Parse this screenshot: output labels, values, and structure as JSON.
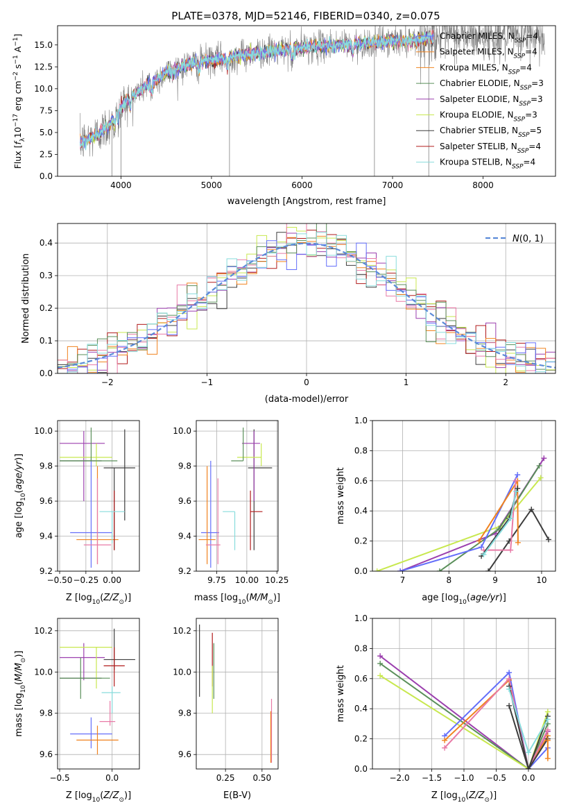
{
  "title": "PLATE=0378, MJD=52146, FIBERID=0340, z=0.075",
  "model_colors": [
    "#636efa",
    "#f0821e",
    "#e87aa6",
    "#3c3c3c",
    "#9b3fae",
    "#c8e84f",
    "#5a8f5a",
    "#b11a1a",
    "#87dcdc"
  ],
  "chart_data": [
    {
      "id": "spectrum",
      "type": "line",
      "xlabel": "wavelength [Angstrom, rest frame]",
      "ylabel": "Flux [f_λ 10^-17 erg cm^-2 s^-1 A^-1]",
      "xlim": [
        3300,
        8800
      ],
      "ylim": [
        0,
        17.2
      ],
      "xticks": [
        4000,
        5000,
        6000,
        7000,
        8000
      ],
      "yticks": [
        0.0,
        2.5,
        5.0,
        7.5,
        10.0,
        12.5,
        15.0
      ],
      "grid": false,
      "legend_position": "right",
      "data_color": "#7f7f7f",
      "data_envelope": {
        "x": [
          3550,
          3700,
          3850,
          3950,
          4050,
          4200,
          4350,
          4500,
          4700,
          4900,
          5100,
          5300,
          5500,
          5800,
          6100,
          6400,
          6700,
          7000,
          7300,
          7500
        ],
        "y": [
          3.8,
          4.6,
          5.6,
          7.2,
          8.6,
          9.8,
          10.8,
          11.8,
          12.6,
          13.2,
          13.4,
          13.8,
          14.1,
          14.4,
          14.8,
          15.0,
          15.2,
          15.4,
          15.6,
          16.0
        ]
      },
      "data_noise_amplitude": 1.6,
      "model_end_x": 7450,
      "legend": [
        "Chabrier MILES, N_SSP=4",
        "Salpeter MILES, N_SSP=4",
        "Kroupa MILES, N_SSP=4",
        "Chabrier ELODIE, N_SSP=3",
        "Salpeter ELODIE, N_SSP=3",
        "Kroupa ELODIE, N_SSP=3",
        "Chabrier STELIB, N_SSP=5",
        "Salpeter STELIB, N_SSP=4",
        "Kroupa STELIB, N_SSP=4"
      ],
      "legend_labels": [
        {
          "pre": "Chabrier MILES, N",
          "sub": "SSP",
          "post": "=4"
        },
        {
          "pre": "Salpeter MILES, N",
          "sub": "SSP",
          "post": "=4"
        },
        {
          "pre": "Kroupa MILES, N",
          "sub": "SSP",
          "post": "=4"
        },
        {
          "pre": "Chabrier ELODIE, N",
          "sub": "SSP",
          "post": "=3"
        },
        {
          "pre": "Salpeter ELODIE, N",
          "sub": "SSP",
          "post": "=3"
        },
        {
          "pre": "Kroupa ELODIE, N",
          "sub": "SSP",
          "post": "=3"
        },
        {
          "pre": "Chabrier STELIB, N",
          "sub": "SSP",
          "post": "=5"
        },
        {
          "pre": "Salpeter STELIB, N",
          "sub": "SSP",
          "post": "=4"
        },
        {
          "pre": "Kroupa STELIB, N",
          "sub": "SSP",
          "post": "=4"
        }
      ]
    },
    {
      "id": "residuals",
      "type": "histogram",
      "xlabel": "(data-model)/error",
      "ylabel": "Normed distribution",
      "xlim": [
        -2.5,
        2.5
      ],
      "ylim": [
        0,
        0.46
      ],
      "xticks": [
        -2,
        -1,
        0,
        1,
        2
      ],
      "yticks": [
        0.0,
        0.1,
        0.2,
        0.3,
        0.4
      ],
      "grid": true,
      "bin_width": 0.1,
      "bin_start": -2.5,
      "reference_curve": {
        "label": "N(0,1)",
        "color": "#5b8bd8",
        "style": "dashed"
      },
      "legend_position": "top-right"
    },
    {
      "id": "age_vs_Z",
      "type": "errorbar",
      "xlabel": "Z [log10(Z/Z⊙)]",
      "ylabel": "age [log10(age/yr)]",
      "xlim": [
        -0.52,
        0.26
      ],
      "ylim": [
        9.2,
        10.06
      ],
      "xticks": [
        -0.5,
        -0.25,
        0.0
      ],
      "yticks": [
        9.2,
        9.4,
        9.6,
        9.8,
        10.0
      ],
      "grid": true,
      "points": [
        {
          "x": -0.2,
          "y": 9.42,
          "xerr": [
            0.2,
            0.2
          ],
          "yerr": [
            0.2,
            0.42
          ],
          "color_index": 0
        },
        {
          "x": -0.14,
          "y": 9.38,
          "xerr": [
            0.2,
            0.2
          ],
          "yerr": [
            0.14,
            0.42
          ],
          "color_index": 1
        },
        {
          "x": -0.14,
          "y": 9.35,
          "xerr": [
            0.13,
            0.13
          ],
          "yerr": [
            0.11,
            0.38
          ],
          "color_index": 2
        },
        {
          "x": -0.1,
          "y": 9.83,
          "xerr": [
            0.4,
            0.0
          ],
          "yerr": [
            0.0,
            0.0
          ],
          "color_index": 3
        },
        {
          "x": 0.02,
          "y": 9.79,
          "xerr": [
            0.1,
            0.2
          ],
          "yerr": [
            0.47,
            0.0
          ],
          "color_index": 3
        },
        {
          "x": 0.12,
          "y": 9.79,
          "xerr": [
            0.0,
            0.0
          ],
          "yerr": [
            0.3,
            0.22
          ],
          "color_index": 3
        },
        {
          "x": -0.27,
          "y": 9.93,
          "xerr": [
            0.23,
            0.2
          ],
          "yerr": [
            0.33,
            0.07
          ],
          "color_index": 4
        },
        {
          "x": -0.15,
          "y": 9.85,
          "xerr": [
            0.35,
            0.15
          ],
          "yerr": [
            0.05,
            0.08
          ],
          "color_index": 5
        },
        {
          "x": -0.2,
          "y": 9.83,
          "xerr": [
            0.3,
            0.25
          ],
          "yerr": [
            0.0,
            0.19
          ],
          "color_index": 6
        },
        {
          "x": 0.02,
          "y": 9.54,
          "xerr": [
            0.0,
            0.0
          ],
          "yerr": [
            0.22,
            0.12
          ],
          "color_index": 7
        },
        {
          "x": 0.0,
          "y": 9.54,
          "xerr": [
            0.12,
            0.12
          ],
          "yerr": [
            0.18,
            0.0
          ],
          "color_index": 8
        }
      ]
    },
    {
      "id": "age_vs_mass",
      "type": "errorbar",
      "xlabel": "mass [log10(M/M⊙)]",
      "ylabel": "",
      "xlim": [
        9.58,
        10.26
      ],
      "ylim": [
        9.2,
        10.06
      ],
      "xticks": [
        9.75,
        10.0,
        10.25
      ],
      "yticks": [
        9.2,
        9.4,
        9.6,
        9.8,
        10.0
      ],
      "grid": true,
      "points": [
        {
          "x": 9.7,
          "y": 9.42,
          "xerr": [
            0.08,
            0.07
          ],
          "yerr": [
            0.2,
            0.41
          ],
          "color_index": 0
        },
        {
          "x": 9.67,
          "y": 9.38,
          "xerr": [
            0.07,
            0.07
          ],
          "yerr": [
            0.14,
            0.42
          ],
          "color_index": 1
        },
        {
          "x": 9.76,
          "y": 9.35,
          "xerr": [
            0.1,
            0.02
          ],
          "yerr": [
            0.11,
            0.38
          ],
          "color_index": 2
        },
        {
          "x": 10.06,
          "y": 9.79,
          "xerr": [
            0.05,
            0.15
          ],
          "yerr": [
            0.47,
            0.22
          ],
          "color_index": 3
        },
        {
          "x": 10.06,
          "y": 9.93,
          "xerr": [
            0.1,
            0.05
          ],
          "yerr": [
            0.33,
            0.07
          ],
          "color_index": 4
        },
        {
          "x": 10.12,
          "y": 9.85,
          "xerr": [
            0.2,
            0.0
          ],
          "yerr": [
            0.05,
            0.08
          ],
          "color_index": 5
        },
        {
          "x": 9.97,
          "y": 9.83,
          "xerr": [
            0.1,
            0.0
          ],
          "yerr": [
            0.0,
            0.19
          ],
          "color_index": 6
        },
        {
          "x": 10.03,
          "y": 9.54,
          "xerr": [
            0.0,
            0.1
          ],
          "yerr": [
            0.22,
            0.12
          ],
          "color_index": 7
        },
        {
          "x": 9.9,
          "y": 9.54,
          "xerr": [
            0.1,
            0.0
          ],
          "yerr": [
            0.22,
            0.0
          ],
          "color_index": 8
        }
      ]
    },
    {
      "id": "massweight_vs_age",
      "type": "line",
      "xlabel": "age  [log10(age/yr)]",
      "ylabel": "mass weight",
      "xlim": [
        6.35,
        10.3
      ],
      "ylim": [
        0,
        1.0
      ],
      "xticks": [
        7,
        8,
        9,
        10
      ],
      "yticks": [
        0.0,
        0.2,
        0.4,
        0.6,
        0.8,
        1.0
      ],
      "grid": true,
      "series": [
        {
          "color_index": 3,
          "x": [
            8.85,
            9.3,
            9.78,
            10.15
          ],
          "y": [
            0.0,
            0.2,
            0.41,
            0.21
          ]
        },
        {
          "color_index": 5,
          "x": [
            6.45,
            9.12,
            9.98
          ],
          "y": [
            0.0,
            0.3,
            0.62
          ]
        },
        {
          "color_index": 4,
          "x": [
            6.95,
            9.0,
            10.05
          ],
          "y": [
            0.0,
            0.25,
            0.75
          ]
        },
        {
          "color_index": 6,
          "x": [
            7.8,
            9.08,
            9.95
          ],
          "y": [
            0.0,
            0.28,
            0.7
          ]
        },
        {
          "color_index": 0,
          "x": [
            6.95,
            8.7,
            9.48
          ],
          "y": [
            0.0,
            0.16,
            0.64
          ]
        },
        {
          "color_index": 1,
          "x": [
            8.65,
            9.48,
            9.49
          ],
          "y": [
            0.2,
            0.6,
            0.19
          ]
        },
        {
          "color_index": 2,
          "x": [
            8.75,
            9.33,
            9.44
          ],
          "y": [
            0.14,
            0.14,
            0.6
          ]
        },
        {
          "color_index": 3,
          "x": [
            8.7,
            9.3,
            9.48
          ],
          "y": [
            0.1,
            0.35,
            0.55
          ]
        },
        {
          "color_index": 8,
          "x": [
            8.75,
            9.33,
            9.45
          ],
          "y": [
            0.11,
            0.35,
            0.53
          ]
        }
      ]
    },
    {
      "id": "mass_vs_Z",
      "type": "errorbar",
      "xlabel": "Z [log10(Z/Z⊙)]",
      "ylabel": "mass [log10(M/M⊙)]",
      "xlim": [
        -0.52,
        0.26
      ],
      "ylim": [
        9.53,
        10.26
      ],
      "xticks": [
        -0.5,
        0.0
      ],
      "yticks": [
        9.6,
        9.8,
        10.0,
        10.2
      ],
      "grid": true,
      "points": [
        {
          "x": -0.2,
          "y": 9.7,
          "xerr": [
            0.2,
            0.2
          ],
          "yerr": [
            0.07,
            0.08
          ],
          "color_index": 0
        },
        {
          "x": -0.14,
          "y": 9.67,
          "xerr": [
            0.2,
            0.2
          ],
          "yerr": [
            0.07,
            0.07
          ],
          "color_index": 1
        },
        {
          "x": -0.02,
          "y": 9.76,
          "xerr": [
            0.1,
            0.05
          ],
          "yerr": [
            0.02,
            0.1
          ],
          "color_index": 2
        },
        {
          "x": -0.1,
          "y": 9.97,
          "xerr": [
            0.4,
            0.0
          ],
          "yerr": [
            0.0,
            0.0
          ],
          "color_index": 3
        },
        {
          "x": 0.02,
          "y": 10.06,
          "xerr": [
            0.1,
            0.2
          ],
          "yerr": [
            0.05,
            0.15
          ],
          "color_index": 3
        },
        {
          "x": -0.27,
          "y": 10.07,
          "xerr": [
            0.23,
            0.2
          ],
          "yerr": [
            0.11,
            0.07
          ],
          "color_index": 4
        },
        {
          "x": -0.15,
          "y": 10.12,
          "xerr": [
            0.35,
            0.15
          ],
          "yerr": [
            0.2,
            0.0
          ],
          "color_index": 5
        },
        {
          "x": -0.3,
          "y": 9.97,
          "xerr": [
            0.2,
            0.28
          ],
          "yerr": [
            0.1,
            0.1
          ],
          "color_index": 6
        },
        {
          "x": 0.02,
          "y": 10.03,
          "xerr": [
            0.1,
            0.1
          ],
          "yerr": [
            0.1,
            0.09
          ],
          "color_index": 7
        },
        {
          "x": 0.0,
          "y": 9.9,
          "xerr": [
            0.1,
            0.08
          ],
          "yerr": [
            0.1,
            0.03
          ],
          "color_index": 8
        }
      ]
    },
    {
      "id": "mass_vs_ebv",
      "type": "errorbar",
      "xlabel": "E(B-V)",
      "ylabel": "",
      "xlim": [
        0.05,
        0.61
      ],
      "ylim": [
        9.53,
        10.26
      ],
      "xticks": [
        0.25,
        0.5
      ],
      "yticks": [
        9.6,
        9.8,
        10.0,
        10.2
      ],
      "grid": true,
      "points": [
        {
          "x": 0.072,
          "y": 10.06,
          "xerr": [
            0,
            0
          ],
          "yerr": [
            0.18,
            0.17
          ],
          "color_index": 3
        },
        {
          "x": 0.16,
          "y": 10.03,
          "xerr": [
            0,
            0
          ],
          "yerr": [
            0.1,
            0.16
          ],
          "color_index": 7
        },
        {
          "x": 0.17,
          "y": 10.0,
          "xerr": [
            0,
            0
          ],
          "yerr": [
            0.13,
            0.14
          ],
          "color_index": 6
        },
        {
          "x": 0.16,
          "y": 9.95,
          "xerr": [
            0,
            0
          ],
          "yerr": [
            0.15,
            0.08
          ],
          "color_index": 5
        },
        {
          "x": 0.565,
          "y": 9.7,
          "xerr": [
            0,
            0
          ],
          "yerr": [
            0.14,
            0.17
          ],
          "color_index": 2
        },
        {
          "x": 0.56,
          "y": 9.68,
          "xerr": [
            0,
            0
          ],
          "yerr": [
            0.12,
            0.13
          ],
          "color_index": 1
        }
      ]
    },
    {
      "id": "massweight_vs_Z",
      "type": "line",
      "xlabel": "Z [log10(Z/Z⊙)]",
      "ylabel": "mass weight",
      "xlim": [
        -2.42,
        0.42
      ],
      "ylim": [
        0,
        1.0
      ],
      "xticks": [
        -2.0,
        -1.5,
        -1.0,
        -0.5,
        0.0
      ],
      "yticks": [
        0.0,
        0.2,
        0.4,
        0.6,
        0.8,
        1.0
      ],
      "grid": true,
      "series": [
        {
          "color_index": 4,
          "x": [
            -2.3,
            0.0,
            0.3
          ],
          "y": [
            0.75,
            0.0,
            0.25
          ]
        },
        {
          "color_index": 6,
          "x": [
            -2.3,
            0.0,
            0.3
          ],
          "y": [
            0.7,
            0.0,
            0.3
          ]
        },
        {
          "color_index": 5,
          "x": [
            -2.3,
            0.0,
            0.3
          ],
          "y": [
            0.62,
            0.0,
            0.38
          ]
        },
        {
          "color_index": 0,
          "x": [
            -1.3,
            -0.3,
            0.0,
            0.3
          ],
          "y": [
            0.22,
            0.64,
            0.0,
            0.14
          ]
        },
        {
          "color_index": 1,
          "x": [
            -1.3,
            -0.3,
            0.0,
            0.3
          ],
          "y": [
            0.19,
            0.59,
            0.0,
            0.22
          ]
        },
        {
          "color_index": 2,
          "x": [
            -1.3,
            -0.3,
            0.0,
            0.3
          ],
          "y": [
            0.14,
            0.6,
            0.0,
            0.26
          ]
        },
        {
          "color_index": 3,
          "x": [
            -0.3,
            0.0,
            0.3
          ],
          "y": [
            0.42,
            0.0,
            0.35
          ]
        },
        {
          "color_index": 3,
          "x": [
            -0.3,
            0.0,
            0.3
          ],
          "y": [
            0.55,
            0.0,
            0.2
          ]
        },
        {
          "color_index": 8,
          "x": [
            -0.3,
            0.0,
            0.3
          ],
          "y": [
            0.53,
            0.11,
            0.33
          ]
        },
        {
          "color_index": 1,
          "x": [
            0.3,
            0.3
          ],
          "y": [
            0.07,
            0.19
          ]
        }
      ]
    }
  ]
}
